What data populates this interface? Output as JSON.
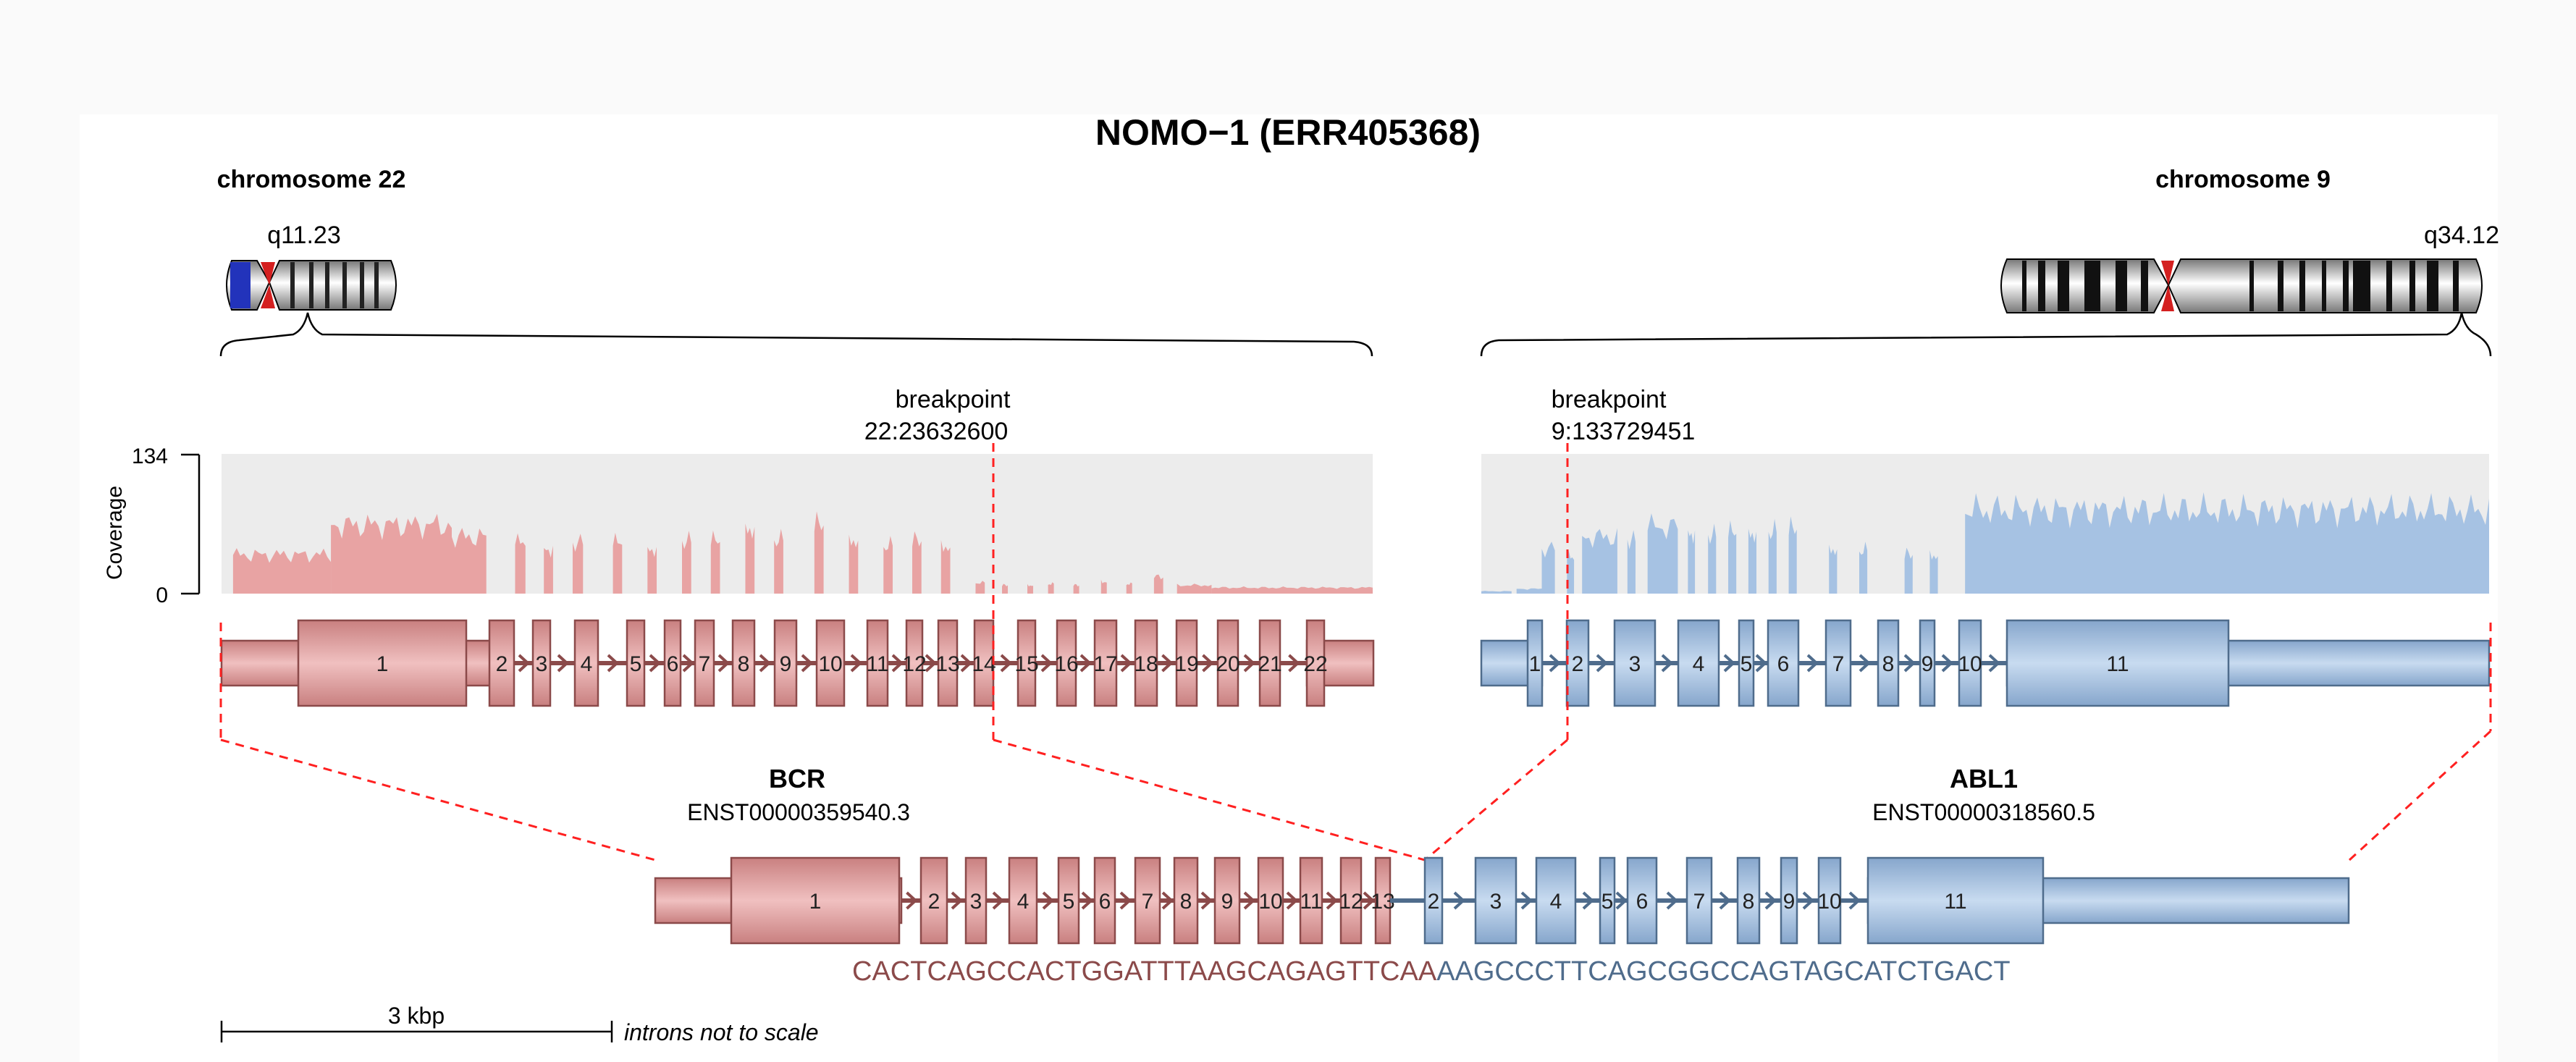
{
  "title": "NOMO−1 (ERR405368)",
  "left": {
    "chromosome": "chromosome 22",
    "band": "q11.23",
    "breakpoint_label": "breakpoint",
    "breakpoint_pos": "22:23632600",
    "gene": "BCR",
    "transcript": "ENST00000359540.3",
    "exons": [
      "1",
      "2",
      "3",
      "4",
      "5",
      "6",
      "7",
      "8",
      "9",
      "10",
      "11",
      "12",
      "13",
      "14",
      "15",
      "16",
      "17",
      "18",
      "19",
      "20",
      "21",
      "22"
    ],
    "color": "#e8a3a3",
    "dark": "#8b4a4a"
  },
  "right": {
    "chromosome": "chromosome 9",
    "band": "q34.12",
    "breakpoint_label": "breakpoint",
    "breakpoint_pos": "9:133729451",
    "gene": "ABL1",
    "transcript": "ENST00000318560.5",
    "exons": [
      "1",
      "2",
      "3",
      "4",
      "5",
      "6",
      "7",
      "8",
      "9",
      "10",
      "11"
    ],
    "color": "#a6c2e3",
    "dark": "#4f6c8c"
  },
  "coverage": {
    "axis_label": "Coverage",
    "max": "134",
    "min": "0"
  },
  "fusion": {
    "left_exons": [
      "1",
      "2",
      "3",
      "4",
      "5",
      "6",
      "7",
      "8",
      "9",
      "10",
      "11",
      "12",
      "13"
    ],
    "right_exons": [
      "2",
      "3",
      "4",
      "5",
      "6",
      "7",
      "8",
      "9",
      "10",
      "11"
    ]
  },
  "sequence": {
    "left": "CACTCAGCCACTGGATTTAAGCAGAGTTCAA",
    "right": "AAGCCCTTCAGCGGCCAGTAGCATCTGACT"
  },
  "scale": {
    "label": "3 kbp",
    "note": "introns not to scale"
  }
}
